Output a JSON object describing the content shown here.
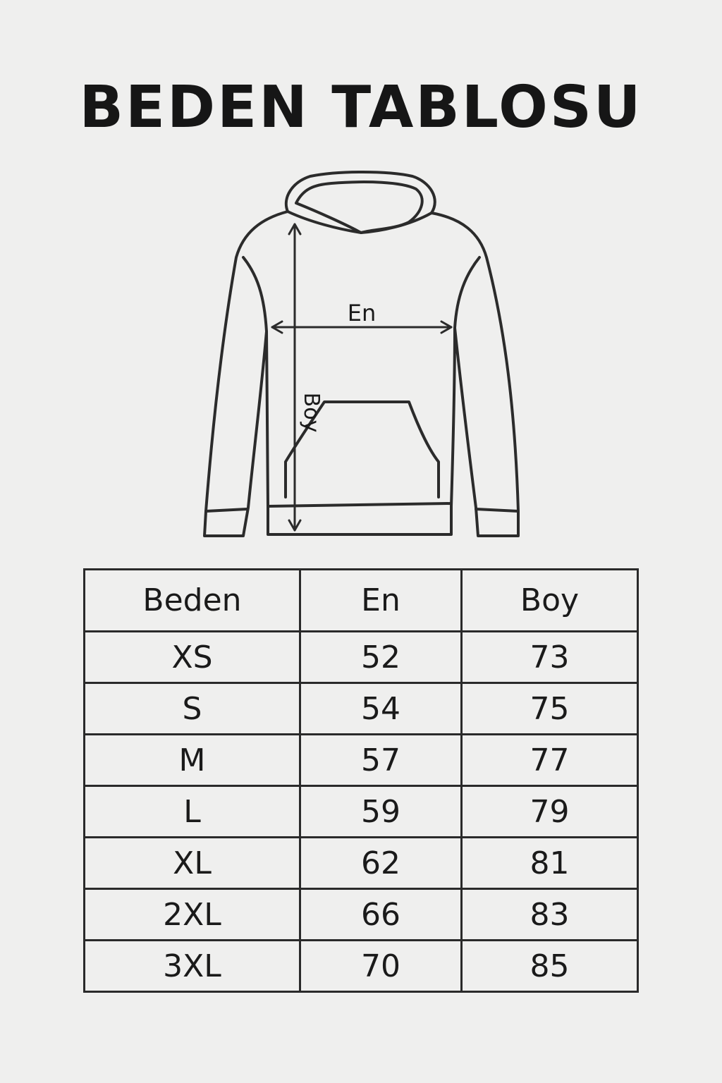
{
  "title": "BEDEN TABLOSU",
  "diagram": {
    "width_label": "En",
    "length_label": "Boy"
  },
  "table": {
    "headers": [
      "Beden",
      "En",
      "Boy"
    ],
    "rows": [
      [
        "XS",
        "52",
        "73"
      ],
      [
        "S",
        "54",
        "75"
      ],
      [
        "M",
        "57",
        "77"
      ],
      [
        "L",
        "59",
        "79"
      ],
      [
        "XL",
        "62",
        "81"
      ],
      [
        "2XL",
        "66",
        "83"
      ],
      [
        "3XL",
        "70",
        "85"
      ]
    ]
  }
}
